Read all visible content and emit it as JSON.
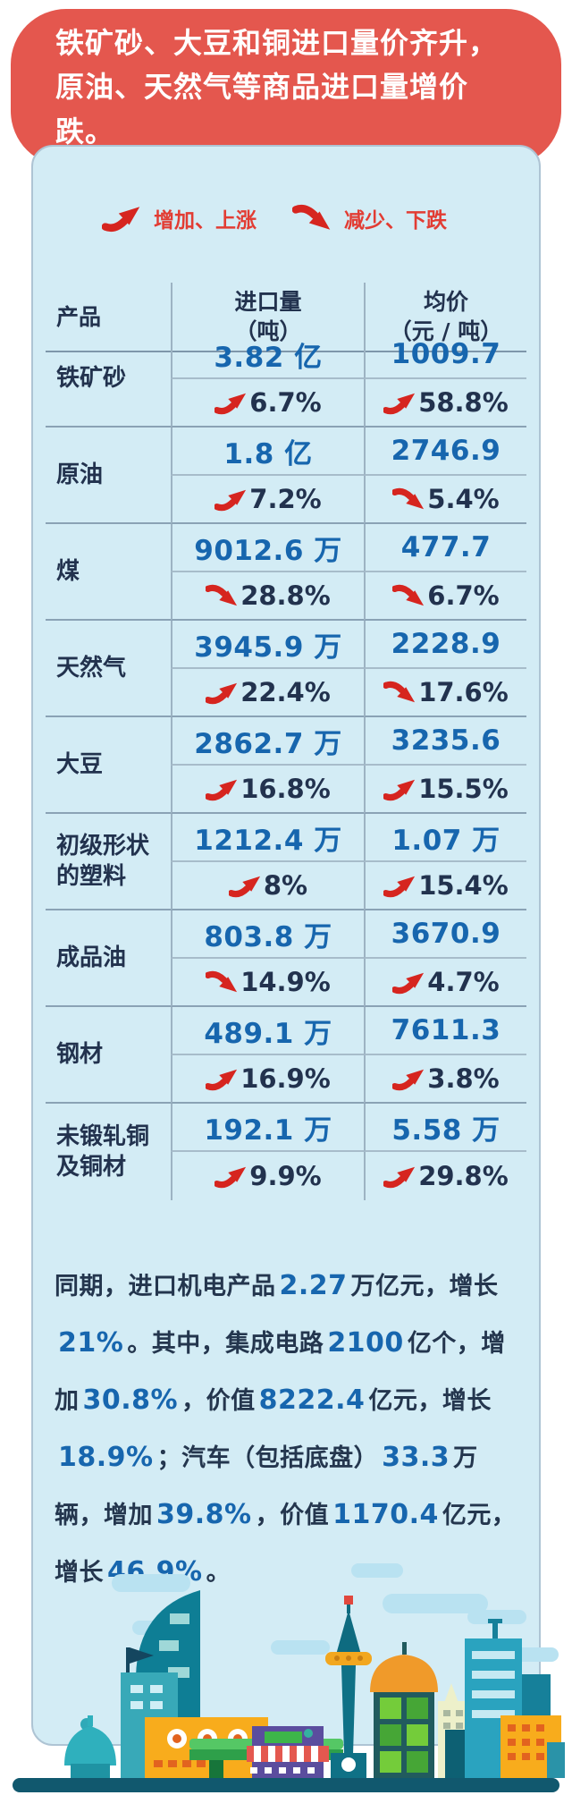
{
  "banner": {
    "title": "铁矿砂、大豆和铜进口量价齐升，原油、天然气等商品进口量增价跌。"
  },
  "legend": {
    "up_label": "增加、上涨",
    "down_label": "减少、下跌"
  },
  "table": {
    "headers": {
      "product": "产品",
      "volume_line1": "进口量",
      "volume_line2": "（吨）",
      "price_line1": "均价",
      "price_line2": "（元 / 吨）"
    },
    "rows": [
      {
        "product": "铁矿砂",
        "volume": "3.82 亿",
        "volume_change": "6.7%",
        "volume_trend": "up",
        "price": "1009.7",
        "price_change": "58.8%",
        "price_trend": "up"
      },
      {
        "product": "原油",
        "volume": "1.8 亿",
        "volume_change": "7.2%",
        "volume_trend": "up",
        "price": "2746.9",
        "price_change": "5.4%",
        "price_trend": "down"
      },
      {
        "product": "煤",
        "volume": "9012.6 万",
        "volume_change": "28.8%",
        "volume_trend": "down",
        "price": "477.7",
        "price_change": "6.7%",
        "price_trend": "down"
      },
      {
        "product": "天然气",
        "volume": "3945.9 万",
        "volume_change": "22.4%",
        "volume_trend": "up",
        "price": "2228.9",
        "price_change": "17.6%",
        "price_trend": "down"
      },
      {
        "product": "大豆",
        "volume": "2862.7 万",
        "volume_change": "16.8%",
        "volume_trend": "up",
        "price": "3235.6",
        "price_change": "15.5%",
        "price_trend": "up"
      },
      {
        "product": "初级形状的塑料",
        "volume": "1212.4 万",
        "volume_change": "8%",
        "volume_trend": "up",
        "price": "1.07 万",
        "price_change": "15.4%",
        "price_trend": "up"
      },
      {
        "product": "成品油",
        "volume": "803.8 万",
        "volume_change": "14.9%",
        "volume_trend": "down",
        "price": "3670.9",
        "price_change": "4.7%",
        "price_trend": "up"
      },
      {
        "product": "钢材",
        "volume": "489.1 万",
        "volume_change": "16.9%",
        "volume_trend": "up",
        "price": "7611.3",
        "price_change": "3.8%",
        "price_trend": "up"
      },
      {
        "product": "未锻轧铜及铜材",
        "volume": "192.1 万",
        "volume_change": "9.9%",
        "volume_trend": "up",
        "price": "5.58 万",
        "price_change": "29.8%",
        "price_trend": "up"
      }
    ]
  },
  "paragraph": {
    "segments": [
      {
        "text": "同期，进口机电产品"
      },
      {
        "text": "2.27",
        "em": true
      },
      {
        "text": "万亿元，增长"
      },
      {
        "text": "21%",
        "em": true
      },
      {
        "text": "。其中，集成电路"
      },
      {
        "text": "2100",
        "em": true
      },
      {
        "text": "亿个，增加"
      },
      {
        "text": "30.8%",
        "em": true
      },
      {
        "text": "，价值"
      },
      {
        "text": "8222.4",
        "em": true
      },
      {
        "text": "亿元，增长"
      },
      {
        "text": "18.9%",
        "em": true
      },
      {
        "text": "；汽车（包括底盘）"
      },
      {
        "text": "33.3",
        "em": true
      },
      {
        "text": "万辆，增加"
      },
      {
        "text": "39.8%",
        "em": true
      },
      {
        "text": "，价值"
      },
      {
        "text": "1170.4",
        "em": true
      },
      {
        "text": "亿元，增长"
      },
      {
        "text": "46.9%",
        "em": true
      },
      {
        "text": "。"
      }
    ]
  },
  "colors": {
    "banner_red": "#e4574e",
    "arrow_red": "#d6251f",
    "legend_red": "#e23c33",
    "value_blue": "#1766ae",
    "text_navy": "#22324e",
    "panel_blue": "#d3ecf5"
  },
  "chart_data": {
    "type": "table",
    "title": "铁矿砂、大豆和铜进口量价齐升，原油、天然气等商品进口量增价跌。",
    "legend": [
      "增加、上涨",
      "减少、下跌"
    ],
    "columns": [
      "产品",
      "进口量（吨）",
      "进口量同比变化",
      "均价（元/吨）",
      "均价同比变化"
    ],
    "rows": [
      [
        "铁矿砂",
        "3.82 亿",
        "+6.7%",
        "1009.7",
        "+58.8%"
      ],
      [
        "原油",
        "1.8 亿",
        "+7.2%",
        "2746.9",
        "-5.4%"
      ],
      [
        "煤",
        "9012.6 万",
        "-28.8%",
        "477.7",
        "-6.7%"
      ],
      [
        "天然气",
        "3945.9 万",
        "+22.4%",
        "2228.9",
        "-17.6%"
      ],
      [
        "大豆",
        "2862.7 万",
        "+16.8%",
        "3235.6",
        "+15.5%"
      ],
      [
        "初级形状的塑料",
        "1212.4 万",
        "+8%",
        "1.07 万",
        "+15.4%"
      ],
      [
        "成品油",
        "803.8 万",
        "-14.9%",
        "3670.9",
        "+4.7%"
      ],
      [
        "钢材",
        "489.1 万",
        "+16.9%",
        "7611.3",
        "+3.8%"
      ],
      [
        "未锻轧铜及铜材",
        "192.1 万",
        "+9.9%",
        "5.58 万",
        "+29.8%"
      ]
    ],
    "note": "同期，进口机电产品2.27万亿元，增长21%。其中，集成电路2100亿个，增加30.8%，价值8222.4亿元，增长18.9%；汽车（包括底盘）33.3万辆，增加39.8%，价值1170.4亿元，增长46.9%。"
  }
}
